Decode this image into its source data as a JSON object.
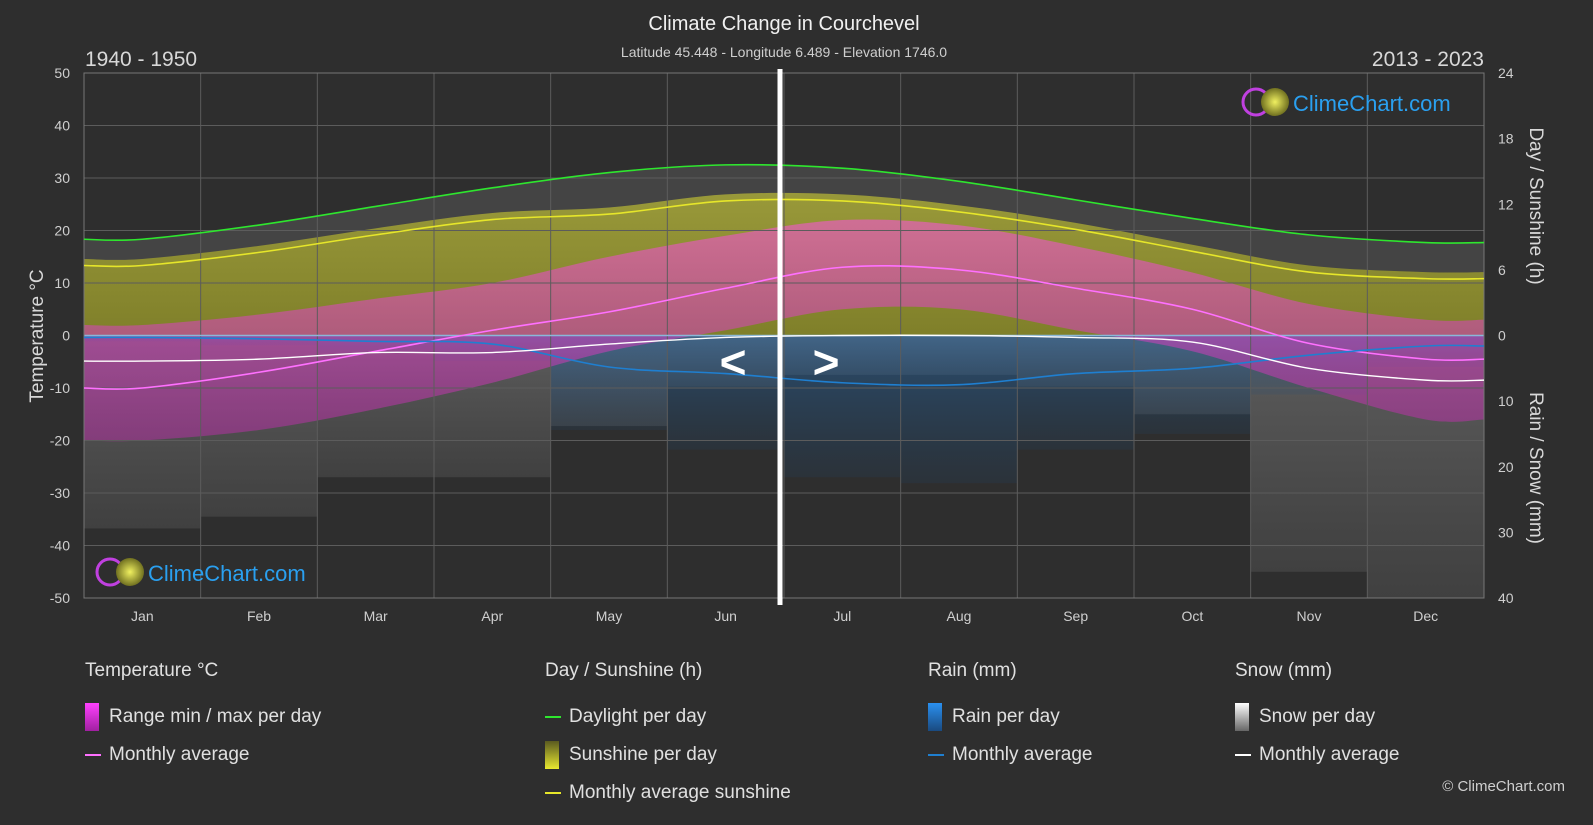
{
  "title": "Climate Change in Courchevel",
  "subtitle": "Latitude 45.448 - Longitude 6.489 - Elevation 1746.0",
  "period_left": "1940 - 1950",
  "period_right": "2013 - 2023",
  "nav_prev": "<",
  "nav_next": ">",
  "brand": "ClimeChart.com",
  "copyright": "© ClimeChart.com",
  "colors": {
    "background": "#2e2e2e",
    "temp_range": "#e040c8",
    "temp_avg": "#ff70ff",
    "daylight": "#2ee62e",
    "sunshine_fill": "#9b9b2a",
    "sunshine_avg": "#e6e62a",
    "rain": "#1f7fd0",
    "snow": "#c8c8c8",
    "snow_avg": "#ffffff"
  },
  "legend": {
    "temperature": {
      "header": "Temperature °C",
      "range": "Range min / max per day",
      "avg": "Monthly average"
    },
    "sunshine": {
      "header": "Day / Sunshine (h)",
      "daylight": "Daylight per day",
      "sun": "Sunshine per day",
      "avg": "Monthly average sunshine"
    },
    "rain": {
      "header": "Rain (mm)",
      "rain": "Rain per day",
      "avg": "Monthly average"
    },
    "snow": {
      "header": "Snow (mm)",
      "snow": "Snow per day",
      "avg": "Monthly average"
    }
  },
  "chart_data": {
    "type": "line",
    "categories": [
      "Jan",
      "Feb",
      "Mar",
      "Apr",
      "May",
      "Jun",
      "Jul",
      "Aug",
      "Sep",
      "Oct",
      "Nov",
      "Dec"
    ],
    "left_axis": {
      "label": "Temperature °C",
      "ticks": [
        50,
        40,
        30,
        20,
        10,
        0,
        -10,
        -20,
        -30,
        -40,
        -50
      ],
      "range": [
        -50,
        50
      ]
    },
    "right_axis_top": {
      "label": "Day / Sunshine (h)",
      "ticks": [
        24,
        18,
        12,
        6,
        0
      ],
      "range": [
        0,
        24
      ]
    },
    "right_axis_bottom": {
      "label": "Rain / Snow (mm)",
      "ticks": [
        0,
        10,
        20,
        30,
        40
      ],
      "range": [
        0,
        40
      ]
    },
    "divider_month_index": 6,
    "series": [
      {
        "name": "Daylight per day",
        "axis": "hours",
        "values": [
          8.8,
          10.1,
          11.8,
          13.5,
          14.9,
          15.6,
          15.3,
          14.1,
          12.4,
          10.7,
          9.2,
          8.5
        ]
      },
      {
        "name": "Monthly average sunshine",
        "axis": "hours",
        "values": [
          6.4,
          7.6,
          9.2,
          10.6,
          11.1,
          12.3,
          12.3,
          11.3,
          9.7,
          7.7,
          5.8,
          5.2
        ]
      },
      {
        "name": "Temperature monthly average",
        "axis": "temp",
        "values": [
          -10.0,
          -7.0,
          -3.0,
          1.0,
          4.5,
          9.0,
          13.0,
          12.5,
          9.0,
          5.0,
          -1.5,
          -4.5
        ]
      },
      {
        "name": "Rain monthly average",
        "axis": "precip",
        "values": [
          0.3,
          0.5,
          0.9,
          1.3,
          4.8,
          5.8,
          7.2,
          7.5,
          5.8,
          5.0,
          3.0,
          1.6
        ]
      },
      {
        "name": "Snow monthly average",
        "axis": "precip",
        "values": [
          3.9,
          3.6,
          2.6,
          2.6,
          1.3,
          0.3,
          0.0,
          0.0,
          0.3,
          1.0,
          5.0,
          6.8
        ]
      }
    ],
    "temperature_range": {
      "max": [
        2,
        4,
        7,
        10,
        15,
        19,
        22,
        21,
        17,
        12,
        6,
        3
      ],
      "min": [
        -20,
        -18,
        -14,
        -9,
        -3,
        1,
        5,
        5,
        1,
        -3,
        -10,
        -16
      ]
    }
  }
}
